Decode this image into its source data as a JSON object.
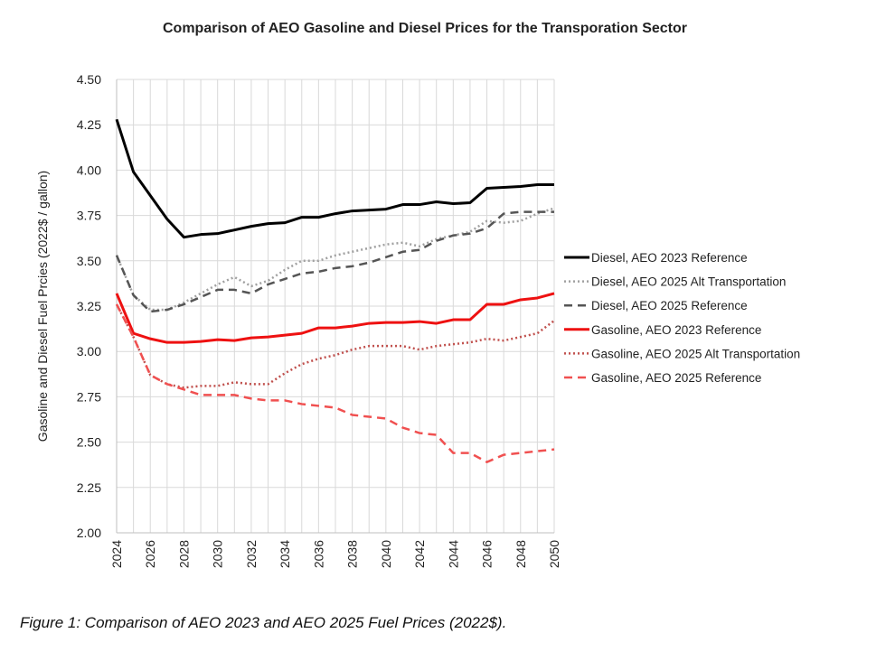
{
  "chart_data": {
    "type": "line",
    "title": "Comparison of AEO Gasoline and Diesel Prices for the Transporation Sector",
    "xlabel": "",
    "ylabel": "Gasoline and Diesel Fuel Prcies (2022$ / gallon)",
    "xlim": [
      2024,
      2050
    ],
    "ylim": [
      2.0,
      4.5
    ],
    "yticks": [
      "2.00",
      "2.25",
      "2.50",
      "2.75",
      "3.00",
      "3.25",
      "3.50",
      "3.75",
      "4.00",
      "4.25",
      "4.50"
    ],
    "xticks": [
      "2024",
      "2026",
      "2028",
      "2030",
      "2032",
      "2034",
      "2036",
      "2038",
      "2040",
      "2042",
      "2044",
      "2046",
      "2048",
      "2050"
    ],
    "grid": true,
    "legend_position": "right",
    "x": [
      2024,
      2025,
      2026,
      2027,
      2028,
      2029,
      2030,
      2031,
      2032,
      2033,
      2034,
      2035,
      2036,
      2037,
      2038,
      2039,
      2040,
      2041,
      2042,
      2043,
      2044,
      2045,
      2046,
      2047,
      2048,
      2049,
      2050
    ],
    "series": [
      {
        "name": "Diesel, AEO 2023 Reference",
        "color": "#000000",
        "dash": "solid",
        "values": [
          4.28,
          3.99,
          3.86,
          3.73,
          3.63,
          3.645,
          3.65,
          3.67,
          3.69,
          3.705,
          3.71,
          3.74,
          3.74,
          3.76,
          3.775,
          3.78,
          3.785,
          3.81,
          3.81,
          3.825,
          3.815,
          3.82,
          3.9,
          3.905,
          3.91,
          3.92,
          3.92
        ]
      },
      {
        "name": "Diesel, AEO 2025 Alt Transportation",
        "color": "#a0a0a0",
        "dash": "dotted",
        "values": [
          3.53,
          3.31,
          3.23,
          3.23,
          3.27,
          3.32,
          3.37,
          3.41,
          3.36,
          3.39,
          3.45,
          3.5,
          3.5,
          3.53,
          3.55,
          3.57,
          3.59,
          3.6,
          3.58,
          3.62,
          3.64,
          3.66,
          3.72,
          3.71,
          3.72,
          3.76,
          3.79
        ]
      },
      {
        "name": "Diesel, AEO 2025 Reference",
        "color": "#555555",
        "dash": "dashed",
        "values": [
          3.53,
          3.31,
          3.22,
          3.23,
          3.26,
          3.3,
          3.34,
          3.34,
          3.32,
          3.37,
          3.4,
          3.43,
          3.44,
          3.46,
          3.47,
          3.49,
          3.52,
          3.55,
          3.56,
          3.61,
          3.64,
          3.65,
          3.68,
          3.76,
          3.77,
          3.77,
          3.77
        ]
      },
      {
        "name": "Gasoline, AEO 2023 Reference",
        "color": "#ee1111",
        "dash": "solid",
        "values": [
          3.32,
          3.1,
          3.07,
          3.05,
          3.05,
          3.055,
          3.065,
          3.06,
          3.075,
          3.08,
          3.09,
          3.1,
          3.13,
          3.13,
          3.14,
          3.155,
          3.16,
          3.16,
          3.165,
          3.155,
          3.175,
          3.175,
          3.26,
          3.26,
          3.285,
          3.295,
          3.32
        ]
      },
      {
        "name": "Gasoline, AEO 2025 Alt Transportation",
        "color": "#c0504d",
        "dash": "dotted",
        "values": [
          3.26,
          3.08,
          2.87,
          2.82,
          2.8,
          2.81,
          2.81,
          2.83,
          2.82,
          2.82,
          2.88,
          2.93,
          2.96,
          2.98,
          3.01,
          3.03,
          3.03,
          3.03,
          3.01,
          3.03,
          3.04,
          3.05,
          3.07,
          3.06,
          3.08,
          3.1,
          3.17
        ]
      },
      {
        "name": "Gasoline, AEO 2025 Reference",
        "color": "#f05050",
        "dash": "dashed",
        "values": [
          3.26,
          3.08,
          2.87,
          2.82,
          2.79,
          2.76,
          2.76,
          2.76,
          2.74,
          2.73,
          2.73,
          2.71,
          2.7,
          2.69,
          2.65,
          2.64,
          2.63,
          2.58,
          2.55,
          2.54,
          2.44,
          2.44,
          2.39,
          2.43,
          2.44,
          2.45,
          2.46
        ]
      }
    ]
  },
  "caption": "Figure 1: Comparison of AEO 2023 and AEO 2025 Fuel Prices (2022$)."
}
